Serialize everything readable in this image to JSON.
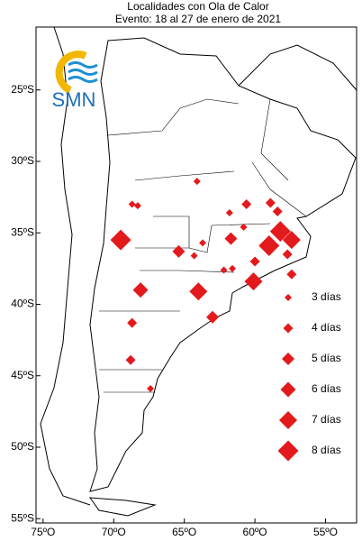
{
  "chart_data": {
    "type": "scatter",
    "title": "Localidades con Ola de Calor",
    "subtitle": "Evento: 18 al 27 de enero de 2021",
    "logo": "SMN",
    "color": "#e31a1c",
    "xlim": [
      -75.5,
      -52.8
    ],
    "ylim": [
      -55.3,
      -20.6
    ],
    "xticks": [
      {
        "value": -75,
        "label": "75ºO"
      },
      {
        "value": -70,
        "label": "70ºO"
      },
      {
        "value": -65,
        "label": "65ºO"
      },
      {
        "value": -60,
        "label": "60ºO"
      },
      {
        "value": -55,
        "label": "55ºO"
      }
    ],
    "yticks": [
      {
        "value": -25,
        "label": "25ºS"
      },
      {
        "value": -30,
        "label": "30ºS"
      },
      {
        "value": -35,
        "label": "35ºS"
      },
      {
        "value": -40,
        "label": "40ºS"
      },
      {
        "value": -45,
        "label": "45ºS"
      },
      {
        "value": -50,
        "label": "50ºS"
      },
      {
        "value": -55,
        "label": "55ºS"
      }
    ],
    "series": [
      {
        "x": [
          -68.7,
          -68.3,
          -64.1,
          -60.6,
          -58.9,
          -61.8,
          -60.8,
          -58.4,
          -69.5,
          -65.4,
          -63.7,
          -64.3,
          -61.7,
          -58.2,
          -57.4,
          -59.0,
          -57.7,
          -60.0,
          -62.2,
          -61.6,
          -57.4,
          -60.1,
          -68.1,
          -64.0,
          -63.0,
          -68.7,
          -68.8,
          -67.4
        ],
        "y": [
          -33.0,
          -33.1,
          -31.4,
          -33.0,
          -32.9,
          -33.6,
          -34.6,
          -33.5,
          -35.5,
          -36.3,
          -35.7,
          -36.6,
          -35.4,
          -34.9,
          -35.5,
          -35.9,
          -36.5,
          -37.0,
          -37.6,
          -37.5,
          -37.9,
          -38.4,
          -39.0,
          -39.1,
          -40.9,
          -41.3,
          -43.9,
          -45.9
        ],
        "sizes": [
          3,
          3,
          3,
          4,
          4,
          3,
          3,
          4,
          8,
          5,
          3,
          3,
          5,
          8,
          7,
          8,
          4,
          4,
          3,
          3,
          4,
          7,
          6,
          7,
          5,
          4,
          4,
          3
        ]
      }
    ],
    "legend": {
      "values": [
        3,
        4,
        5,
        6,
        7,
        8
      ],
      "labels": [
        "3 días",
        "4 días",
        "5 días",
        "6 días",
        "7 días",
        "8 días"
      ]
    }
  }
}
